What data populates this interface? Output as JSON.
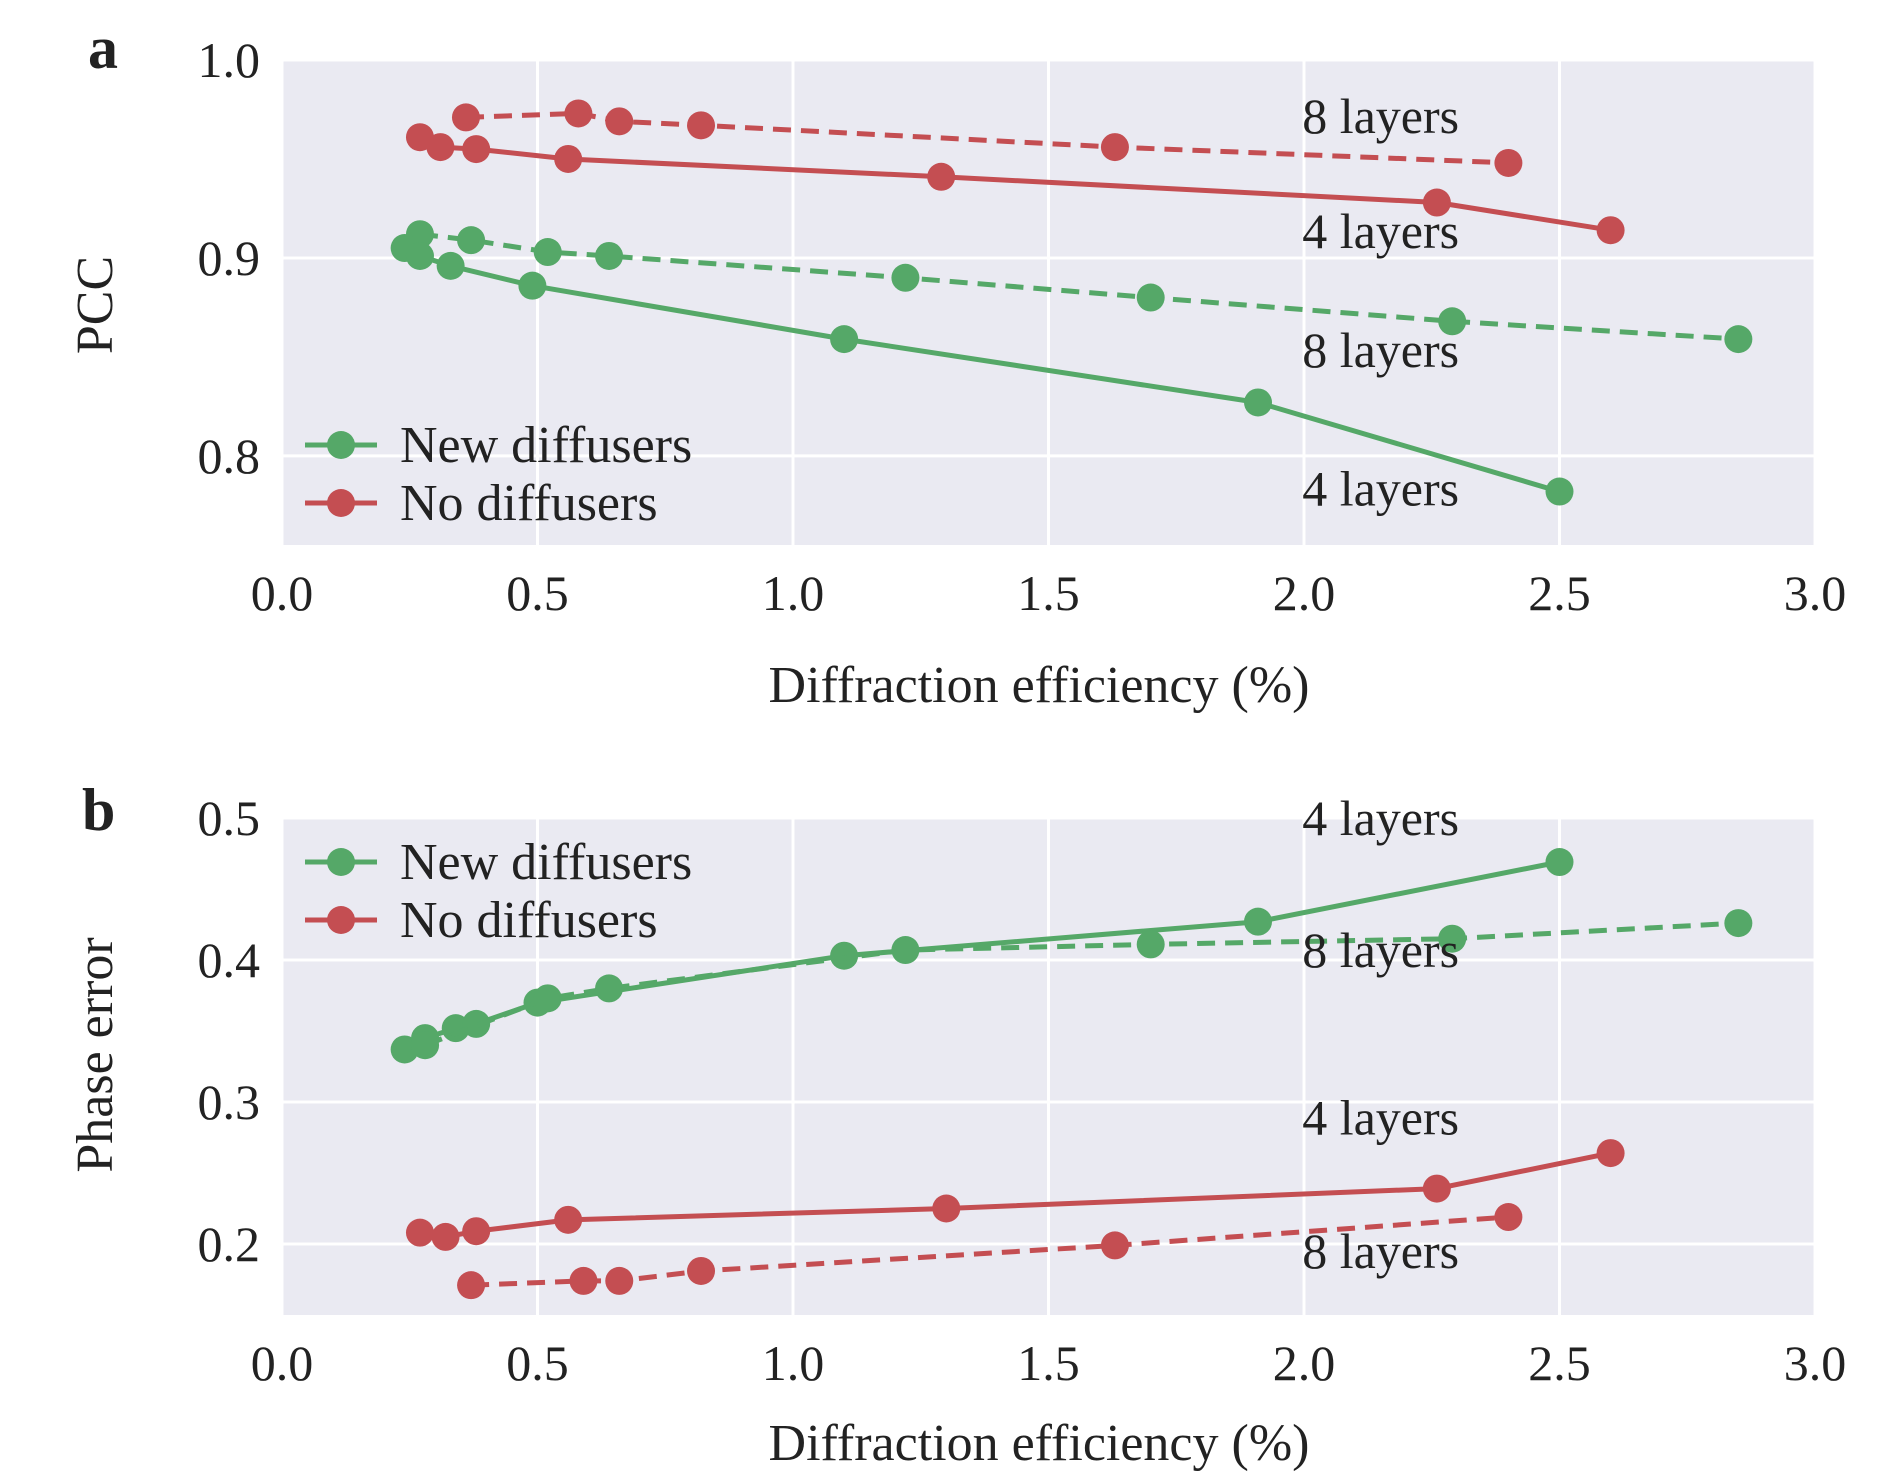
{
  "chart_data": [
    {
      "type": "line",
      "panel_label": "a",
      "xlabel": "Diffraction efficiency (%)",
      "ylabel": "PCC",
      "xlim": [
        0.0,
        3.0
      ],
      "ylim": [
        0.755,
        1.0
      ],
      "xticks": [
        "0.0",
        "0.5",
        "1.0",
        "1.5",
        "2.0",
        "2.5",
        "3.0"
      ],
      "yticks": [
        "0.8",
        "0.9",
        "1.0"
      ],
      "grid": true,
      "legend_position": "lower-left",
      "legend": [
        {
          "label": "New diffusers",
          "color": "#55a868"
        },
        {
          "label": "No diffusers",
          "color": "#c44e52"
        }
      ],
      "series": [
        {
          "group": "No diffusers",
          "style": "dashed",
          "color": "#c44e52",
          "x": [
            0.36,
            0.58,
            0.66,
            0.82,
            1.63,
            2.4
          ],
          "y": [
            0.971,
            0.973,
            0.969,
            0.967,
            0.956,
            0.948
          ]
        },
        {
          "group": "No diffusers",
          "style": "solid",
          "color": "#c44e52",
          "x": [
            0.27,
            0.31,
            0.38,
            0.56,
            1.29,
            2.26,
            2.6
          ],
          "y": [
            0.961,
            0.956,
            0.955,
            0.95,
            0.941,
            0.928,
            0.914
          ]
        },
        {
          "group": "New diffusers",
          "style": "dashed",
          "color": "#55a868",
          "x": [
            0.27,
            0.37,
            0.52,
            0.64,
            1.22,
            1.7,
            2.29,
            2.85
          ],
          "y": [
            0.912,
            0.909,
            0.903,
            0.901,
            0.89,
            0.88,
            0.868,
            0.859
          ]
        },
        {
          "group": "New diffusers",
          "style": "solid",
          "color": "#55a868",
          "x": [
            0.24,
            0.27,
            0.33,
            0.49,
            1.1,
            1.91,
            2.5
          ],
          "y": [
            0.905,
            0.901,
            0.896,
            0.886,
            0.859,
            0.827,
            0.782
          ]
        }
      ],
      "annotations": [
        {
          "text": "8 layers",
          "x": 2.15,
          "y": 0.963
        },
        {
          "text": "4 layers",
          "x": 2.15,
          "y": 0.905
        },
        {
          "text": "8 layers",
          "x": 2.15,
          "y": 0.845
        },
        {
          "text": "4 layers",
          "x": 2.15,
          "y": 0.775
        }
      ]
    },
    {
      "type": "line",
      "panel_label": "b",
      "xlabel": "Diffraction efficiency (%)",
      "ylabel": "Phase error",
      "xlim": [
        0.0,
        3.0
      ],
      "ylim": [
        0.15,
        0.5
      ],
      "xticks": [
        "0.0",
        "0.5",
        "1.0",
        "1.5",
        "2.0",
        "2.5",
        "3.0"
      ],
      "yticks": [
        "0.2",
        "0.3",
        "0.4",
        "0.5"
      ],
      "grid": true,
      "legend_position": "upper-left",
      "legend": [
        {
          "label": "New diffusers",
          "color": "#55a868"
        },
        {
          "label": "No diffusers",
          "color": "#c44e52"
        }
      ],
      "series": [
        {
          "group": "New diffusers",
          "style": "solid",
          "color": "#55a868",
          "x": [
            0.24,
            0.28,
            0.34,
            0.38,
            0.5,
            1.1,
            1.91,
            2.5
          ],
          "y": [
            0.337,
            0.345,
            0.352,
            0.355,
            0.37,
            0.403,
            0.427,
            0.469
          ]
        },
        {
          "group": "New diffusers",
          "style": "dashed",
          "color": "#55a868",
          "x": [
            0.28,
            0.52,
            0.64,
            1.22,
            1.7,
            2.29,
            2.85
          ],
          "y": [
            0.34,
            0.373,
            0.38,
            0.407,
            0.411,
            0.415,
            0.426
          ]
        },
        {
          "group": "No diffusers",
          "style": "solid",
          "color": "#c44e52",
          "x": [
            0.27,
            0.32,
            0.38,
            0.56,
            1.3,
            2.26,
            2.6
          ],
          "y": [
            0.208,
            0.205,
            0.209,
            0.217,
            0.225,
            0.239,
            0.264
          ]
        },
        {
          "group": "No diffusers",
          "style": "dashed",
          "color": "#c44e52",
          "x": [
            0.37,
            0.59,
            0.66,
            0.82,
            1.63,
            2.4
          ],
          "y": [
            0.171,
            0.174,
            0.174,
            0.181,
            0.199,
            0.219
          ]
        }
      ],
      "annotations": [
        {
          "text": "4 layers",
          "x": 2.15,
          "y": 0.488
        },
        {
          "text": "8 layers",
          "x": 2.15,
          "y": 0.395
        },
        {
          "text": "4 layers",
          "x": 2.15,
          "y": 0.277
        },
        {
          "text": "8 layers",
          "x": 2.15,
          "y": 0.183
        }
      ]
    }
  ]
}
